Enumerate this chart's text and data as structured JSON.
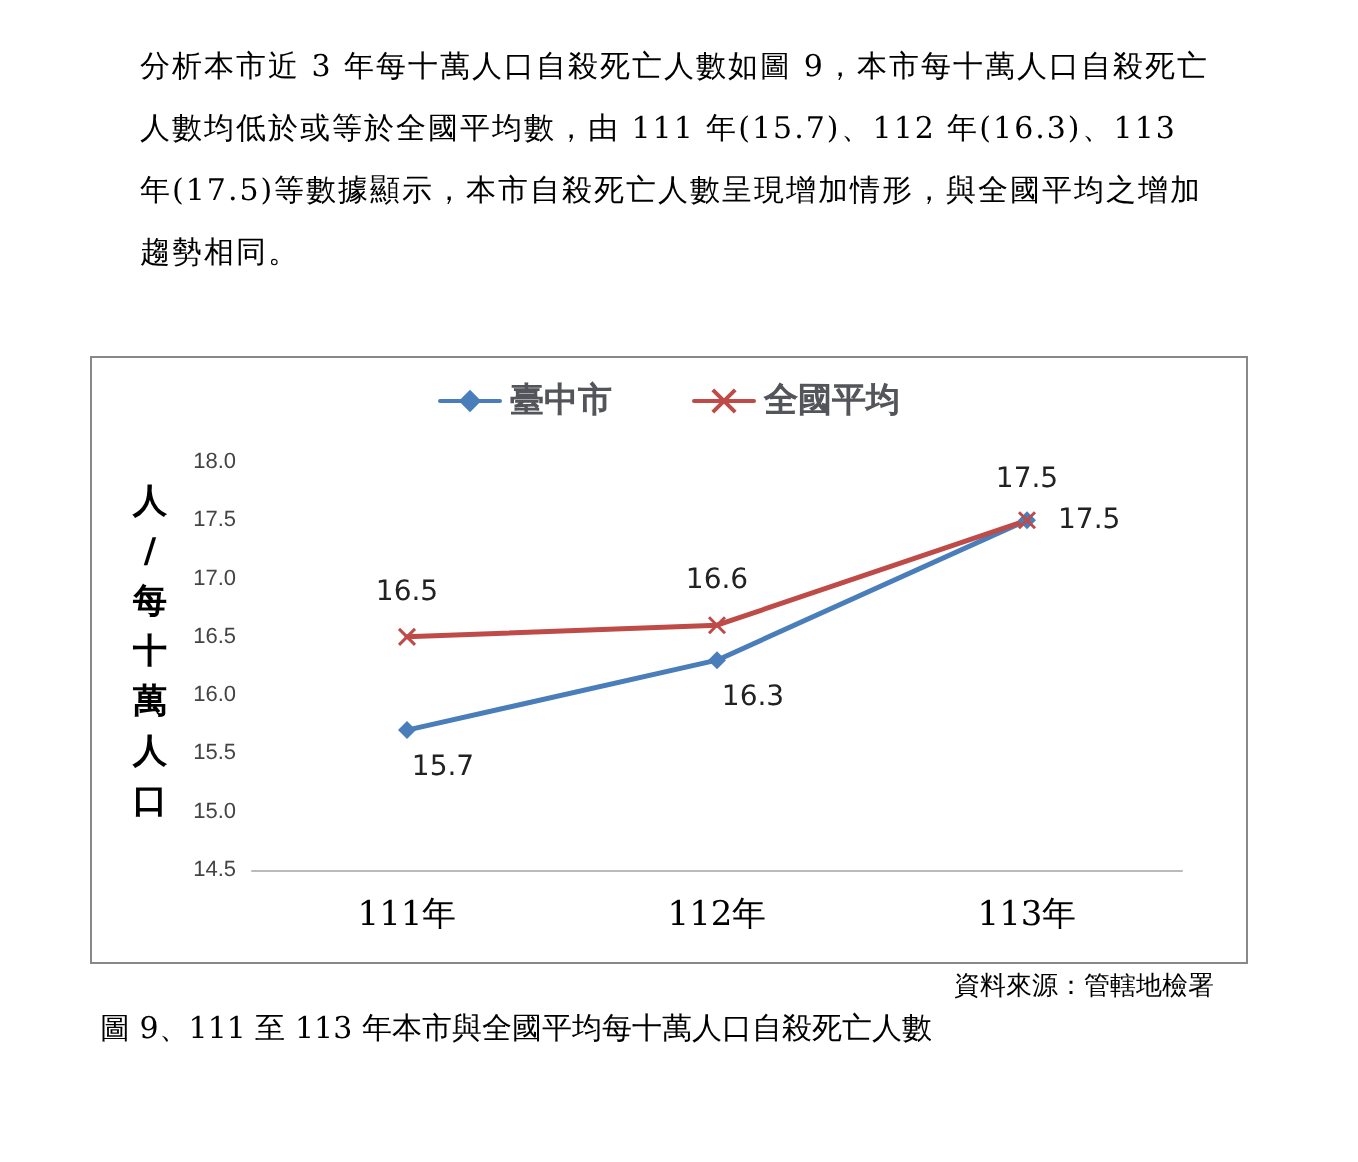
{
  "chart_data": {
    "type": "line",
    "title": "圖 9、111 至 113 年本市與全國平均每十萬人口自殺死亡人數",
    "annotations": [
      "分析本市近 3 年每十萬人口自殺死亡人數如圖 9，本市每十萬人口自殺死亡人數均低於或等於全國平均數，由 111 年(15.7)、112 年(16.3)、113 年(17.5)等數據顯示，本市自殺死亡人數呈現增加情形，與全國平均之增加趨勢相同。",
      "資料來源：管轄地檢署"
    ],
    "ylabel": "人/每十萬人口",
    "categories": [
      "111年",
      "112年",
      "113年"
    ],
    "series": [
      {
        "name": "臺中市",
        "color": "#4a7ebb",
        "marker": "diamond",
        "values": [
          15.7,
          16.3,
          17.5
        ]
      },
      {
        "name": "全國平均",
        "color": "#be4b48",
        "marker": "cross",
        "values": [
          16.5,
          16.6,
          17.5
        ]
      }
    ],
    "ylim": [
      14.5,
      18.0
    ],
    "yticks": [
      {
        "value": 14.5,
        "label": "14.5"
      },
      {
        "value": 15,
        "label": "15.0"
      },
      {
        "value": 15.5,
        "label": "15.5"
      },
      {
        "value": 16,
        "label": "16.0"
      },
      {
        "value": 16.5,
        "label": "16.5"
      },
      {
        "value": 17,
        "label": "17.0"
      },
      {
        "value": 17.5,
        "label": "17.5"
      },
      {
        "value": 18,
        "label": "18.0"
      }
    ],
    "grid": false,
    "legend": "top",
    "data_labels": true
  }
}
